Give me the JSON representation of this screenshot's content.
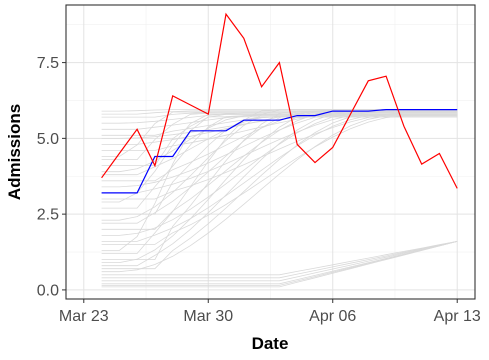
{
  "chart_data": {
    "type": "line",
    "xlabel": "Date",
    "ylabel": "Admissions",
    "xlim": [
      "2020-03-22",
      "2020-04-14"
    ],
    "ylim": [
      -0.3,
      9.4
    ],
    "grid": true,
    "legend": "none",
    "x_ticks": [
      {
        "date": "2020-03-23",
        "label": "Mar 23"
      },
      {
        "date": "2020-03-30",
        "label": "Mar 30"
      },
      {
        "date": "2020-04-06",
        "label": "Apr 06"
      },
      {
        "date": "2020-04-13",
        "label": "Apr 13"
      }
    ],
    "y_ticks": [
      {
        "value": 0,
        "label": "0.0"
      },
      {
        "value": 2.5,
        "label": "2.5"
      },
      {
        "value": 5,
        "label": "5.0"
      },
      {
        "value": 7.5,
        "label": "7.5"
      }
    ],
    "dates": [
      "2020-03-24",
      "2020-03-25",
      "2020-03-26",
      "2020-03-27",
      "2020-03-28",
      "2020-03-29",
      "2020-03-30",
      "2020-03-31",
      "2020-04-01",
      "2020-04-02",
      "2020-04-03",
      "2020-04-04",
      "2020-04-05",
      "2020-04-06",
      "2020-04-07",
      "2020-04-08",
      "2020-04-09",
      "2020-04-10",
      "2020-04-11",
      "2020-04-12",
      "2020-04-13"
    ],
    "series": [
      {
        "color": "#ff0000",
        "role": "observed",
        "values": [
          3.7,
          4.5,
          5.3,
          4.1,
          6.4,
          6.1,
          5.8,
          9.1,
          8.3,
          6.7,
          7.5,
          4.8,
          4.2,
          4.7,
          5.8,
          6.9,
          7.05,
          5.4,
          4.15,
          4.5,
          3.35
        ]
      },
      {
        "color": "#0000ff",
        "role": "estimate",
        "values": [
          3.2,
          3.2,
          3.2,
          4.4,
          4.4,
          5.25,
          5.25,
          5.25,
          5.6,
          5.6,
          5.6,
          5.75,
          5.75,
          5.9,
          5.9,
          5.9,
          5.95,
          5.95,
          5.95,
          5.95,
          5.95
        ]
      }
    ],
    "background_lines": {
      "color": "#d9d9d9",
      "description_count": 40,
      "start_values": [
        5.9,
        5.8,
        5.7,
        5.5,
        5.3,
        5.1,
        5.0,
        4.8,
        4.6,
        4.4,
        4.3,
        4.1,
        3.9,
        3.8,
        3.6,
        3.4,
        3.2,
        3.0,
        2.9,
        2.7,
        2.5,
        2.3,
        2.2,
        2.0,
        1.8,
        1.6,
        1.5,
        1.3,
        1.2,
        1.0,
        0.9,
        0.8,
        0.7,
        0.6,
        0.5,
        0.4,
        0.3,
        0.2,
        0.15,
        0.1
      ]
    }
  }
}
